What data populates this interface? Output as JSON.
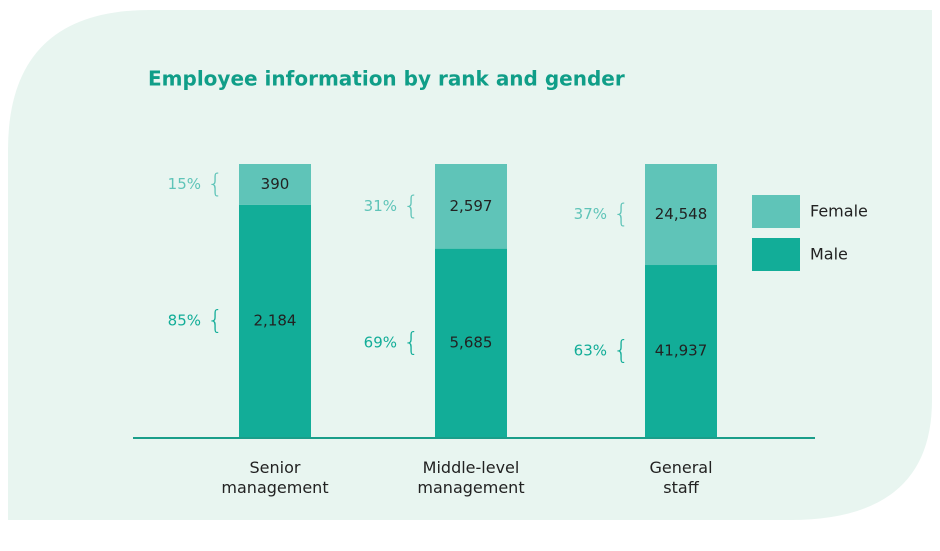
{
  "chart_data": {
    "type": "bar",
    "stacked": true,
    "title": "Employee information by rank and gender",
    "categories": [
      [
        "Senior",
        "management"
      ],
      [
        "Middle-level",
        "management"
      ],
      [
        "General",
        "staff"
      ]
    ],
    "series": [
      {
        "name": "Male",
        "color": "#12ad98",
        "values": [
          2184,
          5685,
          41937
        ],
        "value_labels": [
          "2,184",
          "5,685",
          "41,937"
        ],
        "shares": [
          85,
          69,
          63
        ],
        "share_labels": [
          "85%",
          "69%",
          "63%"
        ]
      },
      {
        "name": "Female",
        "color": "#5fc4b8",
        "values": [
          390,
          2597,
          24548
        ],
        "value_labels": [
          "390",
          "2,597",
          "24,548"
        ],
        "shares": [
          15,
          31,
          37
        ],
        "share_labels": [
          "15%",
          "31%",
          "37%"
        ]
      }
    ]
  }
}
